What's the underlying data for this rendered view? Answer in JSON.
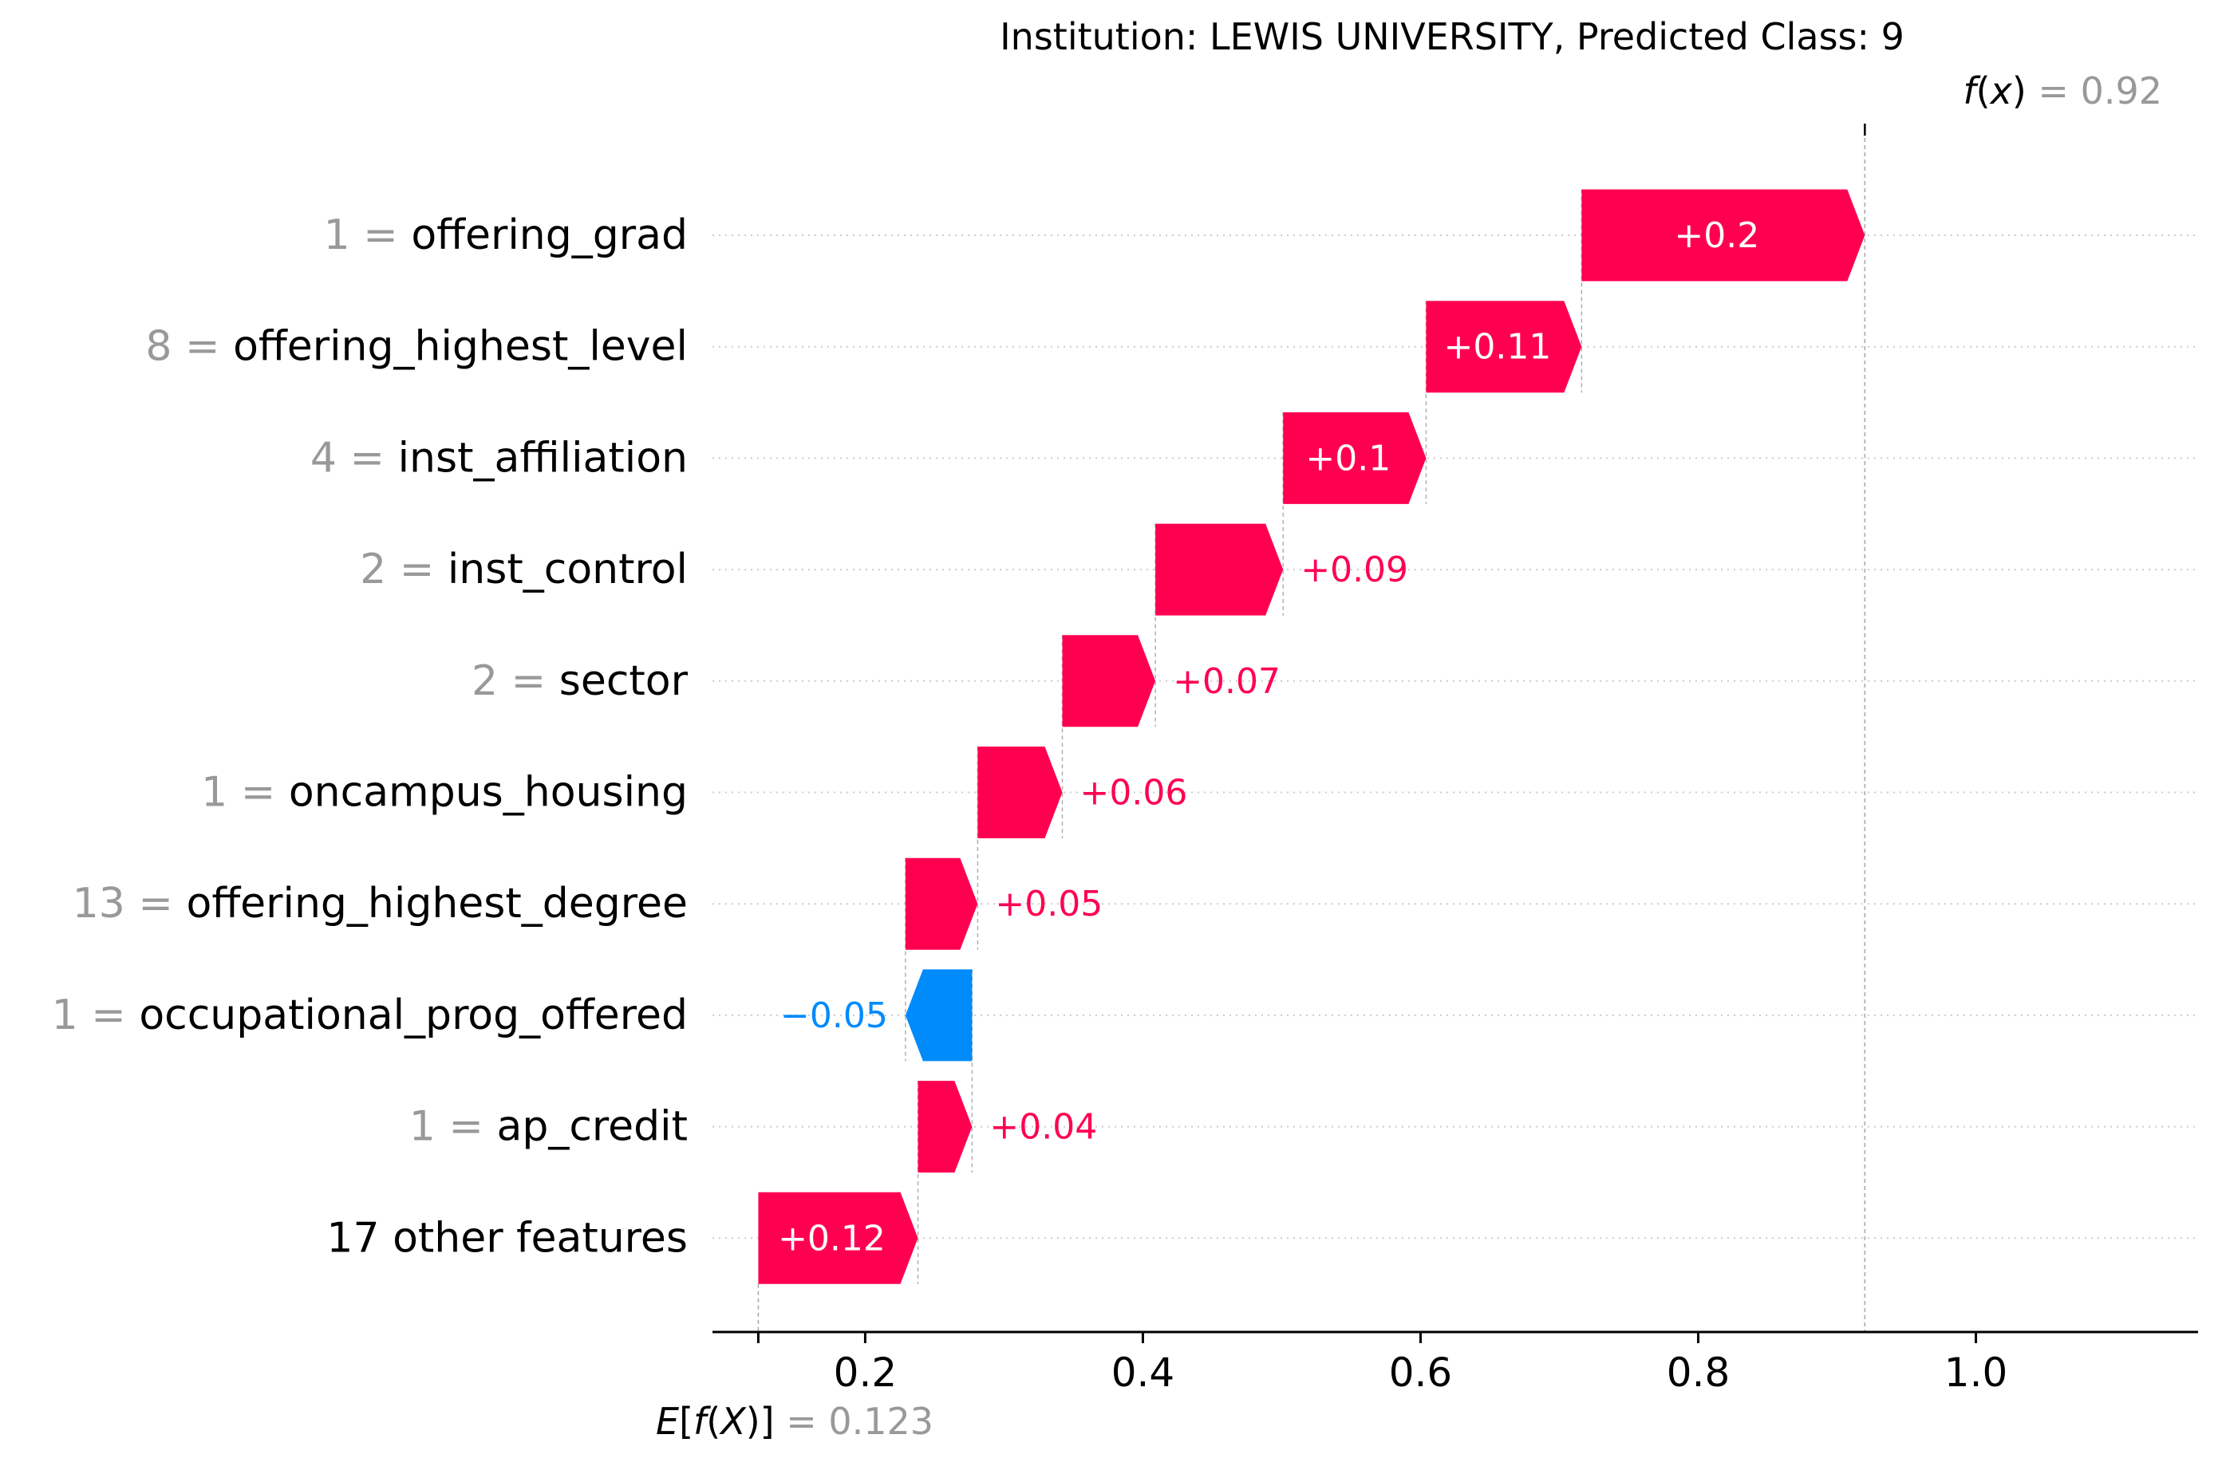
{
  "chart_data": {
    "type": "waterfall",
    "title": "Institution: LEWIS UNIVERSITY, Predicted Class: 9",
    "fx": {
      "label_f": "f",
      "label_x": "x",
      "eq": "= 0.92",
      "value": 0.92
    },
    "efx": {
      "label_E": "E",
      "label_f": "f",
      "label_X": "X",
      "eq": "= 0.123",
      "value": 0.123
    },
    "xlim": [
      0.09,
      1.16
    ],
    "xticks": [
      {
        "value": 0.2,
        "label": "0.2"
      },
      {
        "value": 0.4,
        "label": "0.4"
      },
      {
        "value": 0.6,
        "label": "0.6"
      },
      {
        "value": 0.8,
        "label": "0.8"
      },
      {
        "value": 1.0,
        "label": "1.0"
      }
    ],
    "colors": {
      "positive": "#ff0051",
      "negative": "#008bfb",
      "text": "#000000",
      "muted": "#999999",
      "grid": "#cccccc"
    },
    "features": [
      {
        "value_text": "1 =",
        "name": "offering_grad",
        "shap": 0.2,
        "label": "+0.2",
        "start": 0.716,
        "end": 0.92
      },
      {
        "value_text": "8 =",
        "name": "offering_highest_level",
        "shap": 0.11,
        "label": "+0.11",
        "start": 0.604,
        "end": 0.716
      },
      {
        "value_text": "4 =",
        "name": "inst_affiliation",
        "shap": 0.1,
        "label": "+0.1",
        "start": 0.501,
        "end": 0.604
      },
      {
        "value_text": "2 =",
        "name": "inst_control",
        "shap": 0.09,
        "label": "+0.09",
        "start": 0.409,
        "end": 0.501
      },
      {
        "value_text": "2 =",
        "name": "sector",
        "shap": 0.07,
        "label": "+0.07",
        "start": 0.342,
        "end": 0.409
      },
      {
        "value_text": "1 =",
        "name": "oncampus_housing",
        "shap": 0.06,
        "label": "+0.06",
        "start": 0.281,
        "end": 0.342
      },
      {
        "value_text": "13 =",
        "name": "offering_highest_degree",
        "shap": 0.05,
        "label": "+0.05",
        "start": 0.229,
        "end": 0.281
      },
      {
        "value_text": "1 =",
        "name": "occupational_prog_offered",
        "shap": -0.05,
        "label": "−0.05",
        "start": 0.277,
        "end": 0.229
      },
      {
        "value_text": "1 =",
        "name": "ap_credit",
        "shap": 0.04,
        "label": "+0.04",
        "start": 0.238,
        "end": 0.277
      },
      {
        "value_text": "",
        "name": "17 other features",
        "shap": 0.12,
        "label": "+0.12",
        "start": 0.123,
        "end": 0.238
      }
    ]
  }
}
